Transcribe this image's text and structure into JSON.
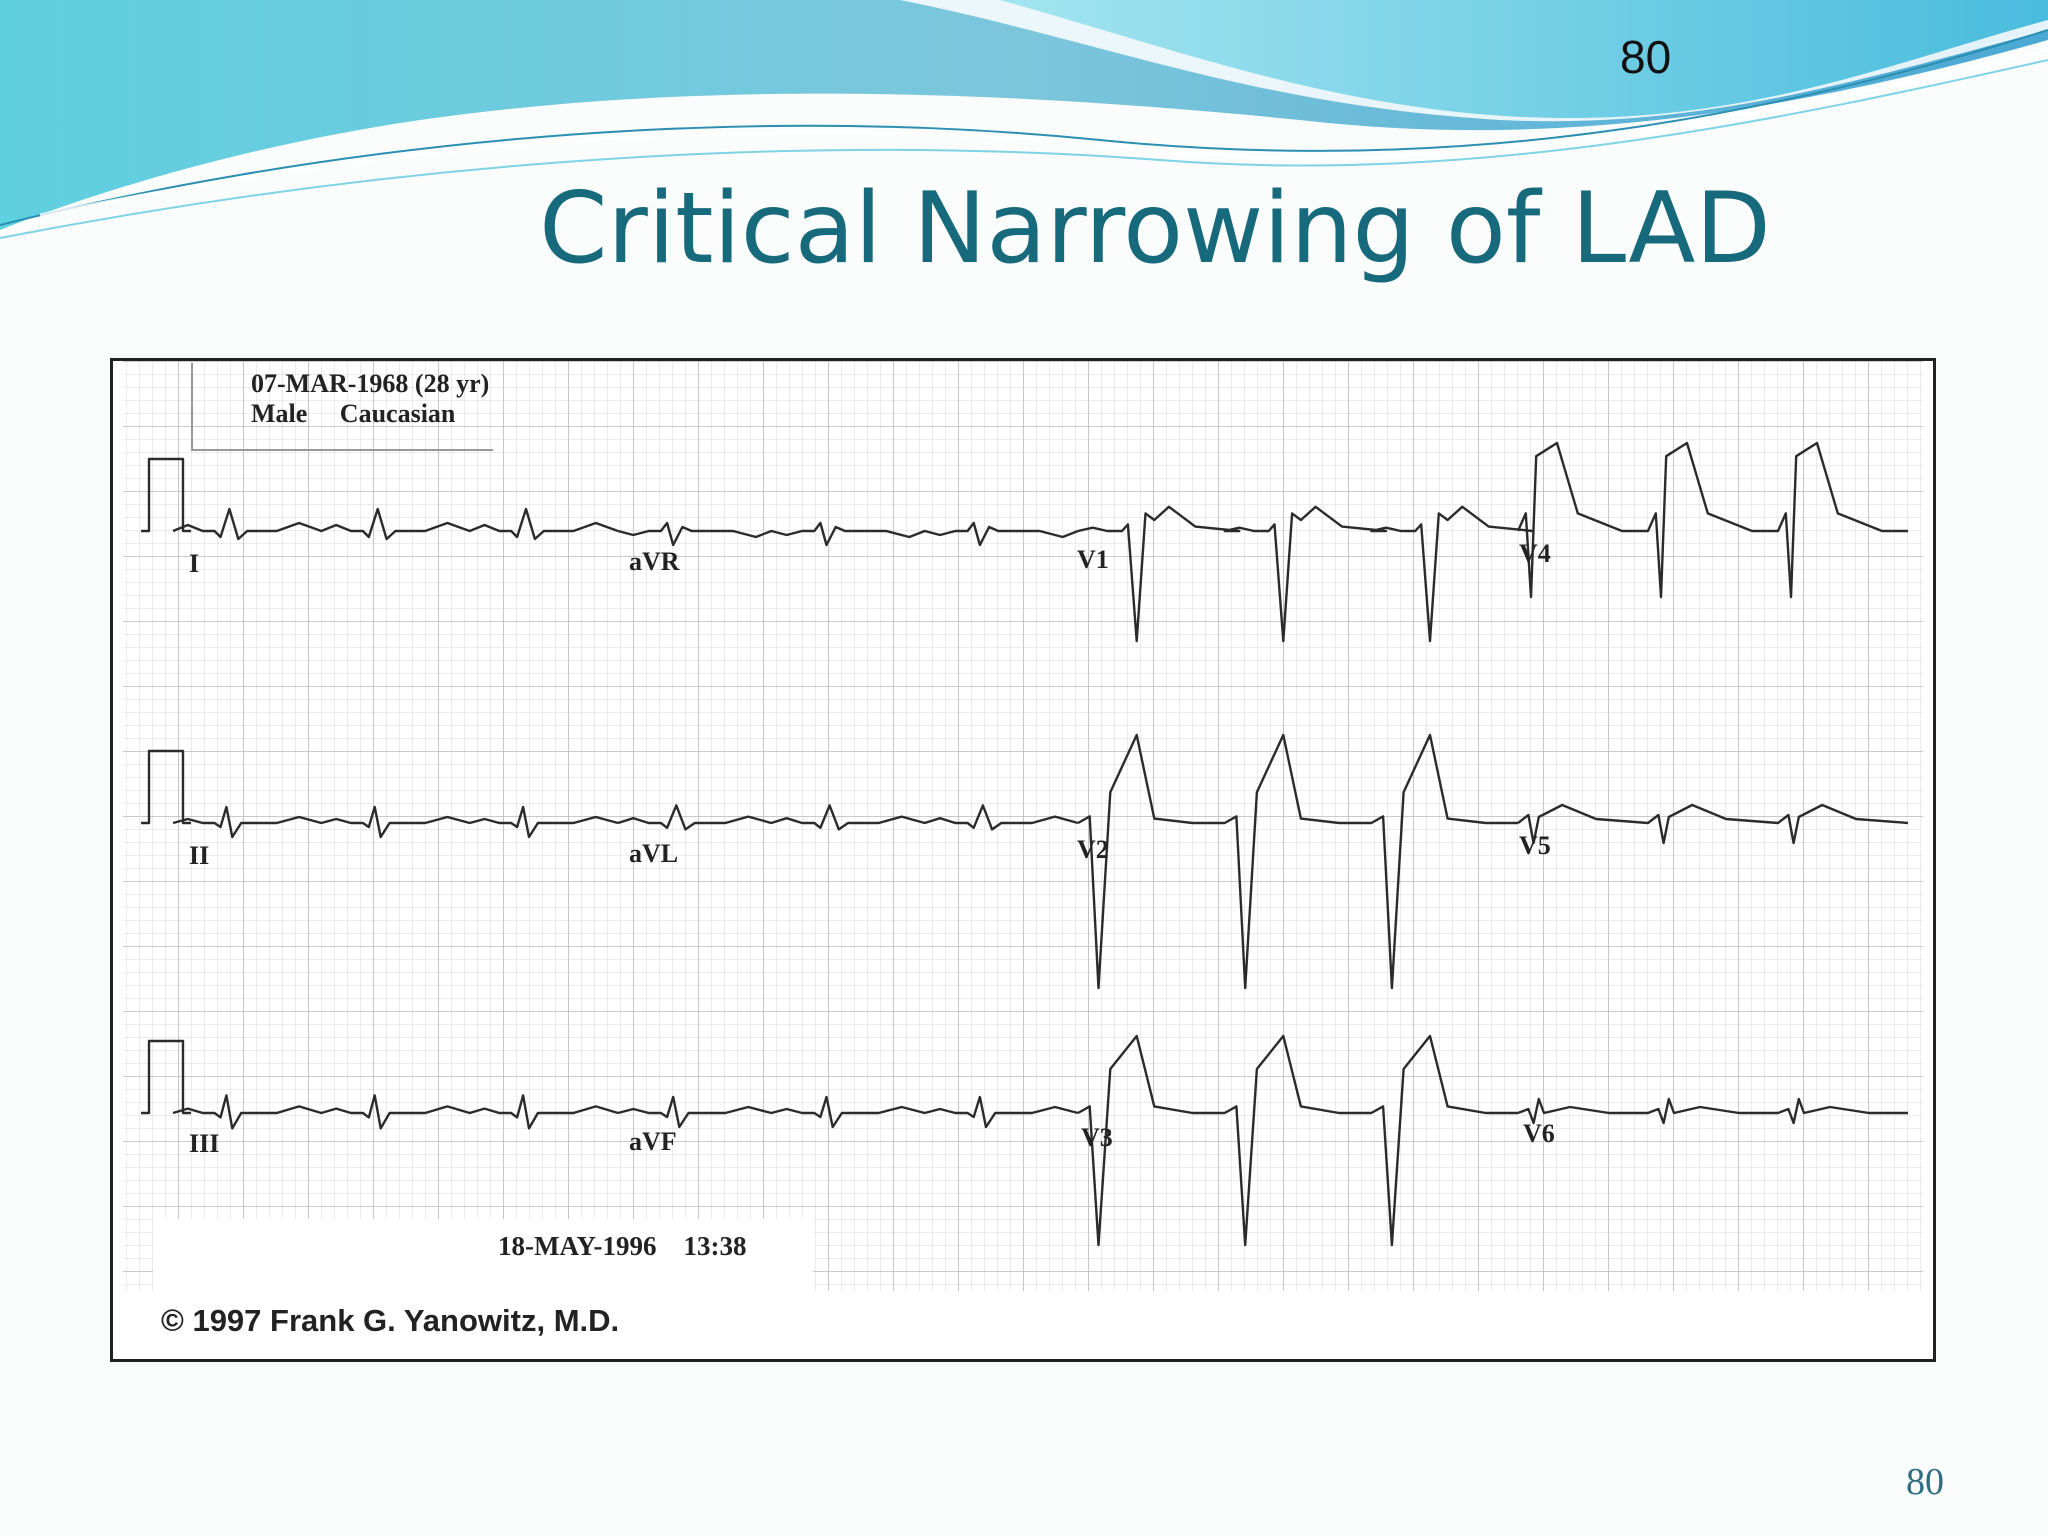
{
  "slide": {
    "number_top": "80",
    "title": "Critical Narrowing of LAD",
    "number_bottom": "80",
    "accent_color": "#17697c"
  },
  "ecg": {
    "patient_dob": "07-MAR-1968 (28 yr)",
    "patient_info": "Male     Caucasian",
    "leads": [
      "I",
      "aVR",
      "V1",
      "V4",
      "II",
      "aVL",
      "V2",
      "V5",
      "III",
      "aVF",
      "V3",
      "V6"
    ],
    "recorded": "18-MAY-1996    13:38",
    "copyright": "© 1997 Frank G. Yanowitz, M.D."
  }
}
